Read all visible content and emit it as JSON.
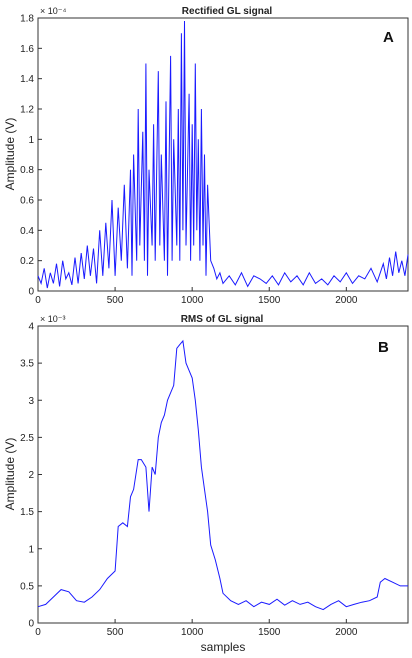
{
  "chart_data": [
    {
      "type": "line",
      "panel_label": "A",
      "title": "Rectified GL signal",
      "xlabel": "",
      "ylabel": "Amplitude (V)",
      "exponent_label": "× 10⁻⁴",
      "xlim": [
        0,
        2400
      ],
      "ylim": [
        0,
        1.8
      ],
      "y_scale_note": "values in units of 1e-4 V",
      "x_ticks": [
        "0",
        "500",
        "1000",
        "1500",
        "2000"
      ],
      "y_ticks": [
        "0",
        "0.2",
        "0.4",
        "0.6",
        "0.8",
        "1",
        "1.2",
        "1.4",
        "1.6",
        "1.8"
      ],
      "series": [
        {
          "color": "#1a1aff",
          "x": [
            0,
            20,
            40,
            60,
            80,
            100,
            120,
            140,
            160,
            180,
            200,
            220,
            240,
            260,
            280,
            300,
            320,
            340,
            360,
            380,
            400,
            420,
            440,
            460,
            480,
            500,
            520,
            540,
            560,
            580,
            600,
            610,
            620,
            640,
            650,
            660,
            680,
            690,
            700,
            710,
            720,
            740,
            750,
            760,
            780,
            790,
            800,
            820,
            830,
            840,
            860,
            870,
            880,
            900,
            910,
            920,
            930,
            940,
            950,
            960,
            980,
            990,
            1000,
            1010,
            1020,
            1030,
            1040,
            1050,
            1060,
            1070,
            1080,
            1090,
            1100,
            1120,
            1140,
            1160,
            1180,
            1200,
            1240,
            1280,
            1320,
            1360,
            1400,
            1440,
            1480,
            1520,
            1560,
            1600,
            1640,
            1680,
            1720,
            1760,
            1800,
            1840,
            1880,
            1920,
            1960,
            2000,
            2040,
            2080,
            2120,
            2160,
            2200,
            2240,
            2260,
            2280,
            2300,
            2320,
            2340,
            2360,
            2380,
            2400
          ],
          "y": [
            0.1,
            0.05,
            0.15,
            0.02,
            0.12,
            0.05,
            0.18,
            0.03,
            0.2,
            0.08,
            0.12,
            0.04,
            0.22,
            0.05,
            0.25,
            0.08,
            0.3,
            0.1,
            0.28,
            0.05,
            0.4,
            0.1,
            0.45,
            0.15,
            0.6,
            0.1,
            0.55,
            0.2,
            0.7,
            0.15,
            0.8,
            0.1,
            0.9,
            0.2,
            1.2,
            0.3,
            1.05,
            0.2,
            1.5,
            0.1,
            0.8,
            0.3,
            1.1,
            0.2,
            1.45,
            0.3,
            0.9,
            0.2,
            1.25,
            0.1,
            1.55,
            0.2,
            1.0,
            0.3,
            1.2,
            0.2,
            1.7,
            0.4,
            1.78,
            0.3,
            1.3,
            0.2,
            1.1,
            0.3,
            1.5,
            0.4,
            1.0,
            0.2,
            1.2,
            0.3,
            0.9,
            0.1,
            0.7,
            0.2,
            0.15,
            0.08,
            0.12,
            0.05,
            0.1,
            0.04,
            0.12,
            0.03,
            0.1,
            0.08,
            0.05,
            0.1,
            0.04,
            0.12,
            0.06,
            0.1,
            0.04,
            0.12,
            0.05,
            0.08,
            0.04,
            0.1,
            0.06,
            0.12,
            0.05,
            0.1,
            0.08,
            0.15,
            0.06,
            0.18,
            0.08,
            0.22,
            0.1,
            0.26,
            0.12,
            0.2,
            0.1,
            0.24
          ]
        }
      ]
    },
    {
      "type": "line",
      "panel_label": "B",
      "title": "RMS of GL signal",
      "xlabel": "samples",
      "ylabel": "Amplitude (V)",
      "exponent_label": "× 10⁻³",
      "xlim": [
        0,
        2400
      ],
      "ylim": [
        0,
        4
      ],
      "y_scale_note": "values in units of 1e-3 V",
      "x_ticks": [
        "0",
        "500",
        "1000",
        "1500",
        "2000"
      ],
      "y_ticks": [
        "0",
        "0.5",
        "1",
        "1.5",
        "2",
        "2.5",
        "3",
        "3.5",
        "4"
      ],
      "series": [
        {
          "color": "#1a1aff",
          "x": [
            0,
            50,
            100,
            150,
            200,
            250,
            300,
            350,
            400,
            450,
            500,
            520,
            550,
            580,
            600,
            620,
            650,
            670,
            700,
            720,
            740,
            760,
            780,
            800,
            820,
            840,
            860,
            880,
            900,
            920,
            940,
            960,
            980,
            1000,
            1020,
            1040,
            1060,
            1080,
            1100,
            1120,
            1150,
            1180,
            1200,
            1250,
            1300,
            1350,
            1400,
            1450,
            1500,
            1550,
            1600,
            1650,
            1700,
            1750,
            1800,
            1850,
            1900,
            1950,
            2000,
            2050,
            2100,
            2150,
            2200,
            2220,
            2250,
            2300,
            2350,
            2400
          ],
          "y": [
            0.22,
            0.25,
            0.35,
            0.45,
            0.42,
            0.3,
            0.28,
            0.35,
            0.45,
            0.6,
            0.7,
            1.3,
            1.35,
            1.3,
            1.7,
            1.8,
            2.2,
            2.2,
            2.1,
            1.5,
            2.1,
            2.0,
            2.5,
            2.7,
            2.8,
            3.0,
            3.1,
            3.2,
            3.7,
            3.75,
            3.8,
            3.5,
            3.4,
            3.3,
            3.0,
            2.6,
            2.1,
            1.8,
            1.5,
            1.05,
            0.85,
            0.6,
            0.4,
            0.3,
            0.25,
            0.3,
            0.22,
            0.28,
            0.25,
            0.32,
            0.24,
            0.3,
            0.25,
            0.28,
            0.22,
            0.18,
            0.25,
            0.3,
            0.22,
            0.25,
            0.28,
            0.3,
            0.35,
            0.55,
            0.6,
            0.55,
            0.5,
            0.5
          ]
        }
      ]
    }
  ]
}
